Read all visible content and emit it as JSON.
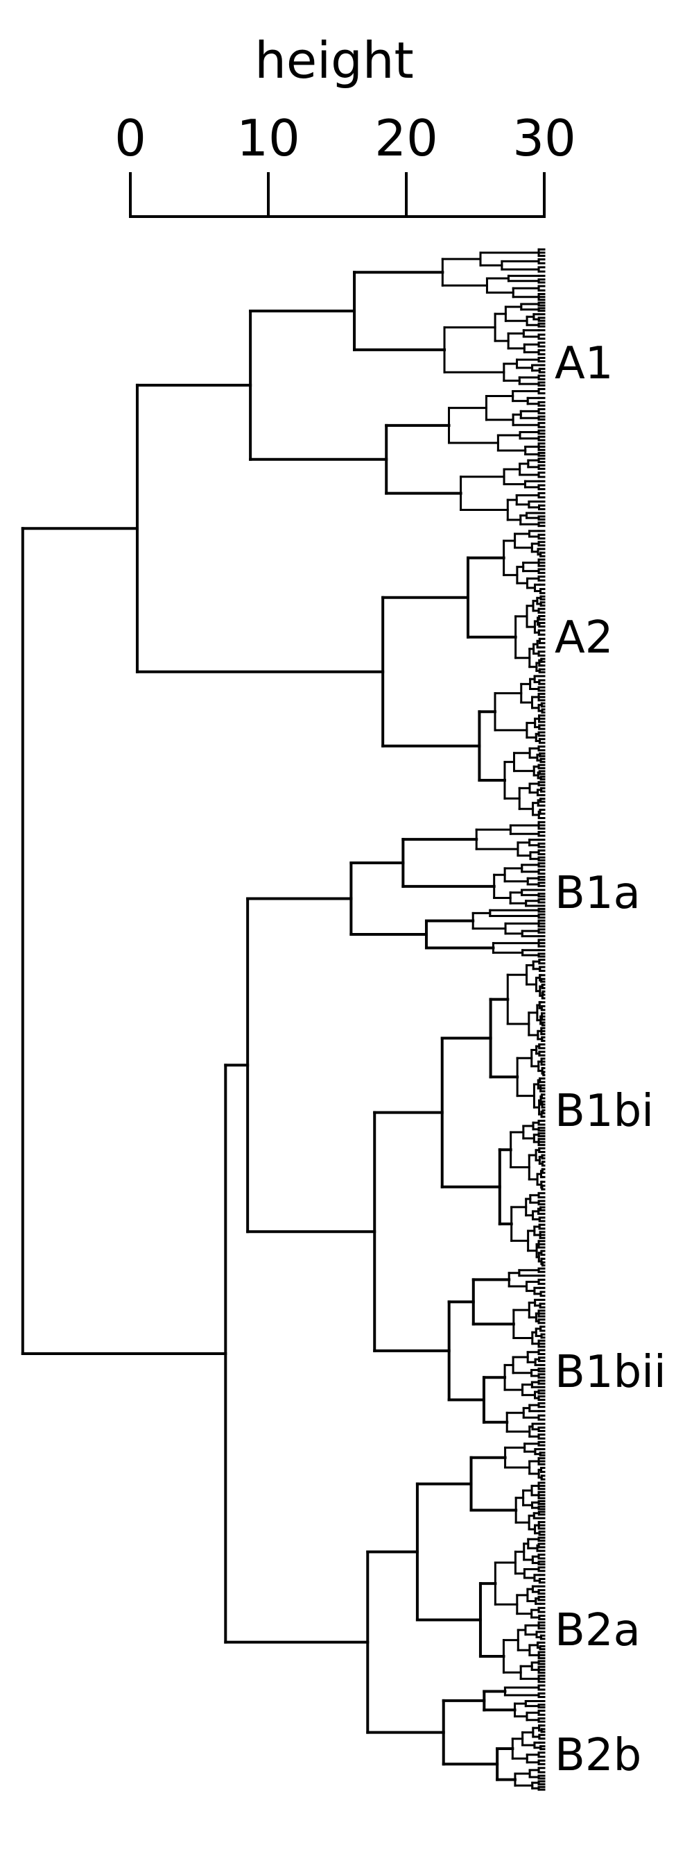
{
  "chart_data": {
    "type": "dendrogram",
    "axis": {
      "title": "height",
      "ticks": [
        0,
        10,
        20,
        30
      ],
      "range": [
        0,
        30
      ],
      "orientation": "reversed-horizontal-top"
    },
    "clusters": [
      {
        "label": "A1",
        "join_height": 21.3
      },
      {
        "label": "A2",
        "join_height": 11.7
      },
      {
        "label": "B1a",
        "join_height": 14.0
      },
      {
        "label": "B1bi",
        "join_height": 7.4
      },
      {
        "label": "B1bii",
        "join_height": 6.9
      },
      {
        "label": "B2a",
        "join_height": 9.2
      },
      {
        "label": "B2b",
        "join_height": 7.3
      }
    ],
    "merges": [
      {
        "children": [
          "A1",
          "A2"
        ],
        "height": 29.5
      },
      {
        "children": [
          "B1a",
          "B1bi+B1bii"
        ],
        "height": 21.5
      },
      {
        "children": [
          "B1bi",
          "B1bii"
        ],
        "height": 12.3
      },
      {
        "children": [
          "B2a",
          "B2b"
        ],
        "height": 12.8
      },
      {
        "children": [
          "B1",
          "B2"
        ],
        "height": 23.1
      },
      {
        "children": [
          "A",
          "B"
        ],
        "height": 37.8
      }
    ]
  }
}
